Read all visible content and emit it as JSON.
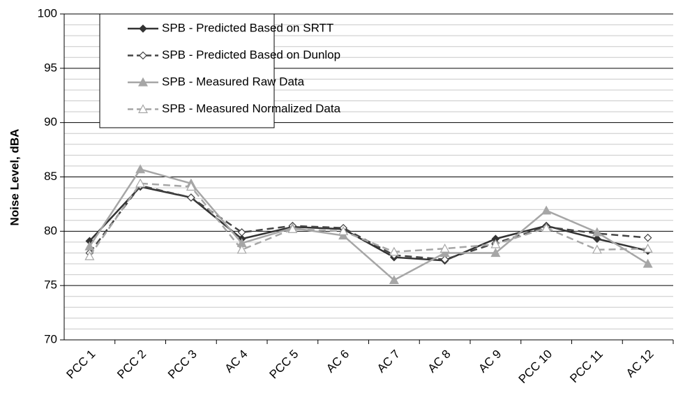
{
  "chart_data": {
    "type": "line",
    "y_label": "Noise Level, dBA",
    "categories": [
      "PCC 1",
      "PCC 2",
      "PCC 3",
      "AC 4",
      "PCC 5",
      "AC 6",
      "AC 7",
      "AC 8",
      "AC 9",
      "PCC 10",
      "PCC 11",
      "AC 12"
    ],
    "series": [
      {
        "name": "SPB - Predicted Based on SRTT",
        "color": "#333333",
        "dash": false,
        "marker": "diamond",
        "filled": true,
        "values": [
          79.1,
          84.1,
          83.1,
          79.3,
          80.4,
          80.2,
          77.6,
          77.3,
          79.3,
          80.5,
          79.3,
          78.2
        ]
      },
      {
        "name": "SPB - Predicted Based on Dunlop",
        "color": "#444444",
        "dash": true,
        "marker": "diamond",
        "filled": false,
        "values": [
          78.0,
          84.2,
          83.1,
          79.9,
          80.5,
          80.3,
          77.8,
          77.4,
          78.9,
          80.4,
          79.8,
          79.4
        ]
      },
      {
        "name": "SPB - Measured Raw Data",
        "color": "#a6a6a6",
        "dash": false,
        "marker": "triangle",
        "filled": true,
        "values": [
          78.6,
          85.7,
          84.4,
          78.9,
          80.3,
          79.6,
          75.5,
          78.0,
          78.0,
          81.9,
          79.9,
          77.0
        ]
      },
      {
        "name": "SPB - Measured Normalized Data",
        "color": "#a6a6a6",
        "dash": true,
        "marker": "triangle",
        "filled": false,
        "values": [
          77.7,
          84.4,
          84.1,
          78.3,
          80.2,
          80.0,
          78.1,
          78.4,
          78.8,
          80.3,
          78.3,
          78.4
        ]
      }
    ],
    "ylim": [
      70,
      100
    ],
    "yticks": [
      70,
      75,
      80,
      85,
      90,
      95,
      100
    ],
    "minor_yticks": [
      71,
      72,
      73,
      74,
      76,
      77,
      78,
      79,
      81,
      82,
      83,
      84,
      86,
      87,
      88,
      89,
      91,
      92,
      93,
      94,
      96,
      97,
      98,
      99
    ],
    "grid": true,
    "legend": "upper left"
  }
}
